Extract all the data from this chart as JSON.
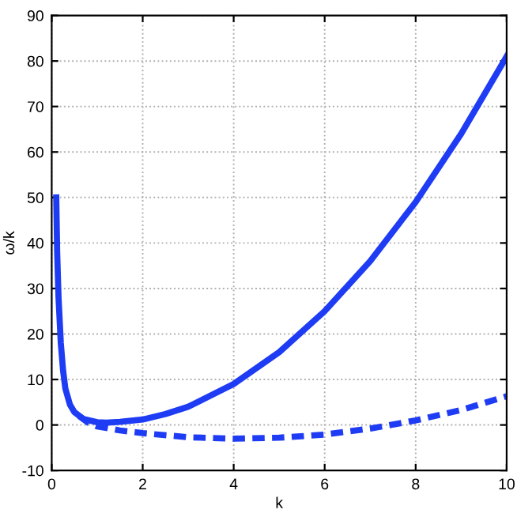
{
  "chart_data": {
    "type": "line",
    "xlabel": "k",
    "ylabel": "ω/k",
    "series": [
      {
        "color": "#1f3cf5",
        "line_style": "solid",
        "x": [
          0.1,
          0.12,
          0.15,
          0.2,
          0.25,
          0.3,
          0.4,
          0.5,
          0.7,
          1,
          1.2,
          1.5,
          2,
          2.5,
          3,
          4,
          5,
          6,
          7,
          8,
          9,
          10
        ],
        "values": [
          50,
          38,
          28,
          18,
          12,
          8,
          4.5,
          2.8,
          1.3,
          0.6,
          0.5,
          0.7,
          1.2,
          2.4,
          4,
          9,
          16,
          25,
          36,
          49,
          64,
          81
        ]
      },
      {
        "color": "#1f3cf5",
        "line_style": "dashed",
        "x": [
          0.6,
          0.8,
          1,
          1.5,
          2,
          3,
          4,
          5,
          6,
          7,
          8,
          9,
          10
        ],
        "values": [
          2,
          0.5,
          -0.3,
          -1.2,
          -1.8,
          -2.7,
          -3,
          -2.8,
          -2.1,
          -0.8,
          1,
          3.3,
          6.3
        ]
      }
    ],
    "xlim": [
      0,
      10
    ],
    "ylim": [
      -10,
      90
    ],
    "xticks": [
      0,
      2,
      4,
      6,
      8,
      10
    ],
    "yticks": [
      -10,
      0,
      10,
      20,
      30,
      40,
      50,
      60,
      70,
      80,
      90
    ],
    "grid": true,
    "marker": "none"
  }
}
